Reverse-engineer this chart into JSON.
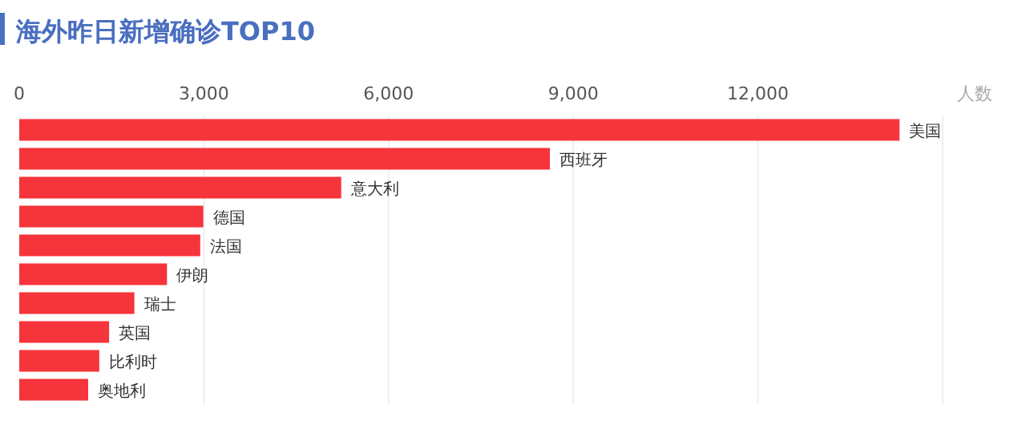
{
  "chart_data": {
    "type": "bar",
    "orientation": "horizontal",
    "title": "海外昨日新增确诊TOP10",
    "xlabel": "人数",
    "categories": [
      "美国",
      "西班牙",
      "意大利",
      "德国",
      "法国",
      "伊朗",
      "瑞士",
      "英国",
      "比利时",
      "奥地利"
    ],
    "values": [
      14300,
      8620,
      5230,
      2990,
      2940,
      2400,
      1870,
      1460,
      1300,
      1120
    ],
    "color": "#f5353b",
    "xlim": [
      0,
      15000
    ],
    "xticks": [
      0,
      {
        "value": 3000,
        "label": "3,000"
      },
      {
        "value": 6000,
        "label": "6,000"
      },
      {
        "value": 9000,
        "label": "9,000"
      },
      {
        "value": 12000,
        "label": "12,000"
      }
    ],
    "grid": "x"
  }
}
